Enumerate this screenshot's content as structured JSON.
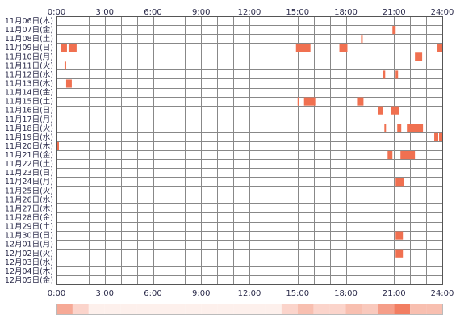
{
  "chart_data": {
    "type": "timeline",
    "title": "",
    "x_unit": "hour of day",
    "x_range": [
      0,
      24
    ],
    "x_ticks": [
      "0:00",
      "3:00",
      "6:00",
      "9:00",
      "12:00",
      "15:00",
      "18:00",
      "21:00",
      "24:00"
    ],
    "grid": true,
    "days": [
      {
        "label": "11月06日(木)",
        "intervals": []
      },
      {
        "label": "11月07日(金)",
        "intervals": [
          [
            20.9,
            21.1
          ]
        ]
      },
      {
        "label": "11月08日(土)",
        "intervals": [
          [
            18.95,
            19.05
          ]
        ]
      },
      {
        "label": "11月09日(日)",
        "intervals": [
          [
            0.3,
            0.65
          ],
          [
            0.75,
            1.25
          ],
          [
            14.9,
            15.8
          ],
          [
            17.6,
            18.1
          ],
          [
            23.7,
            24.0
          ]
        ]
      },
      {
        "label": "11月10日(月)",
        "intervals": [
          [
            22.3,
            22.75
          ]
        ]
      },
      {
        "label": "11月11日(火)",
        "intervals": [
          [
            0.5,
            0.6
          ]
        ]
      },
      {
        "label": "11月12日(水)",
        "intervals": [
          [
            20.3,
            20.45
          ],
          [
            21.1,
            21.25
          ]
        ]
      },
      {
        "label": "11月13日(木)",
        "intervals": [
          [
            0.6,
            0.95
          ]
        ]
      },
      {
        "label": "11月14日(金)",
        "intervals": []
      },
      {
        "label": "11月15日(土)",
        "intervals": [
          [
            15.0,
            15.1
          ],
          [
            15.4,
            16.1
          ],
          [
            18.7,
            19.1
          ]
        ]
      },
      {
        "label": "11月16日(日)",
        "intervals": [
          [
            20.0,
            20.3
          ],
          [
            20.8,
            21.3
          ]
        ]
      },
      {
        "label": "11月17日(月)",
        "intervals": []
      },
      {
        "label": "11月18日(火)",
        "intervals": [
          [
            20.4,
            20.5
          ],
          [
            21.2,
            21.45
          ],
          [
            21.8,
            22.8
          ]
        ]
      },
      {
        "label": "11月19日(水)",
        "intervals": [
          [
            23.5,
            23.75
          ],
          [
            23.8,
            24.0
          ]
        ]
      },
      {
        "label": "11月20日(木)",
        "intervals": [
          [
            0.0,
            0.15
          ]
        ]
      },
      {
        "label": "11月21日(金)",
        "intervals": [
          [
            20.6,
            20.9
          ],
          [
            21.4,
            22.3
          ]
        ]
      },
      {
        "label": "11月22日(土)",
        "intervals": []
      },
      {
        "label": "11月23日(日)",
        "intervals": []
      },
      {
        "label": "11月24日(月)",
        "intervals": [
          [
            21.1,
            21.6
          ]
        ]
      },
      {
        "label": "11月25日(火)",
        "intervals": []
      },
      {
        "label": "11月26日(水)",
        "intervals": []
      },
      {
        "label": "11月27日(木)",
        "intervals": []
      },
      {
        "label": "11月28日(金)",
        "intervals": []
      },
      {
        "label": "11月29日(土)",
        "intervals": []
      },
      {
        "label": "11月30日(日)",
        "intervals": [
          [
            21.1,
            21.55
          ]
        ]
      },
      {
        "label": "12月01日(月)",
        "intervals": []
      },
      {
        "label": "12月02日(火)",
        "intervals": [
          [
            21.1,
            21.55
          ]
        ]
      },
      {
        "label": "12月03日(水)",
        "intervals": []
      },
      {
        "label": "12月04日(木)",
        "intervals": []
      },
      {
        "label": "12月05日(金)",
        "intervals": []
      }
    ],
    "colors": {
      "bar": "#f07050",
      "grid": "#888888",
      "frame": "#555555",
      "text": "#2a2a4a",
      "summary_low": "#ffffff",
      "summary_high": "#f07050"
    }
  }
}
